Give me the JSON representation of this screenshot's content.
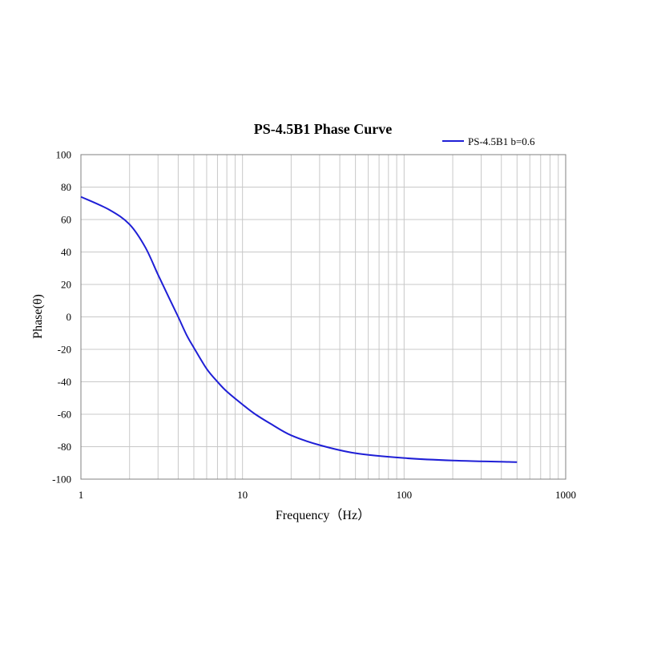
{
  "chart_data": {
    "type": "line",
    "title": "PS-4.5B1 Phase Curve",
    "xlabel": "Frequency（Hz）",
    "ylabel": "Phase(θ)",
    "x_scale": "log",
    "xlim": [
      1,
      1000
    ],
    "ylim": [
      -100,
      100
    ],
    "x_ticks": [
      1,
      10,
      100,
      1000
    ],
    "x_tick_labels": [
      "1",
      "10",
      "100",
      "1000"
    ],
    "y_ticks": [
      100,
      80,
      60,
      40,
      20,
      0,
      -20,
      -40,
      -60,
      -80,
      -100
    ],
    "y_tick_labels": [
      "100",
      "80",
      "60",
      "40",
      "20",
      "0",
      "-20",
      "-40",
      "-60",
      "-80",
      "-100"
    ],
    "grid": true,
    "legend_position": "top-right",
    "series": [
      {
        "name": "PS-4.5B1 b=0.6",
        "color": "#1f1fd6",
        "x": [
          1,
          1.5,
          2,
          2.5,
          3,
          3.5,
          4,
          4.5,
          5,
          6,
          7,
          8,
          10,
          12,
          15,
          20,
          30,
          50,
          100,
          200,
          500
        ],
        "y": [
          74,
          66,
          57,
          43,
          26,
          12,
          0,
          -11,
          -19,
          -32,
          -40,
          -46,
          -54,
          -60,
          -66,
          -73,
          -79,
          -84,
          -87,
          -88.5,
          -89.5
        ]
      }
    ]
  }
}
